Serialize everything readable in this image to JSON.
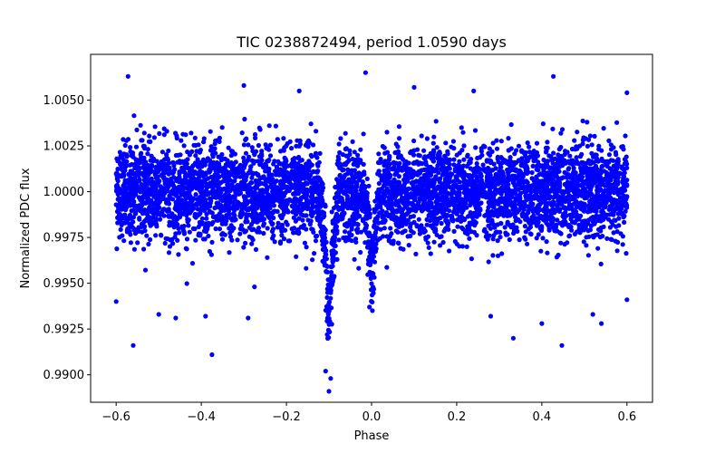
{
  "chart_data": {
    "type": "scatter",
    "title": "TIC 0238872494, period 1.0590 days",
    "xlabel": "Phase",
    "ylabel": "Normalized PDC flux",
    "xlim": [
      -0.66,
      0.66
    ],
    "ylim": [
      0.9885,
      1.0075
    ],
    "x_ticks": [
      -0.6,
      -0.4,
      -0.2,
      0.0,
      0.2,
      0.4,
      0.6
    ],
    "x_tick_labels": [
      "−0.6",
      "−0.4",
      "−0.2",
      "0.0",
      "0.2",
      "0.4",
      "0.6"
    ],
    "y_ticks": [
      0.99,
      0.9925,
      0.995,
      0.9975,
      1.0,
      1.0025,
      1.005
    ],
    "y_tick_labels": [
      "0.9900",
      "0.9925",
      "0.9950",
      "0.9975",
      "1.0000",
      "1.0025",
      "1.0050"
    ],
    "grid": false,
    "color": "#0000ff",
    "series": [
      {
        "name": "PDC flux",
        "phase_range": [
          -0.6,
          0.6
        ],
        "baseline_flux": 1.0,
        "flux_scatter_sigma": 0.0013,
        "primary_eclipse": {
          "phase_center": -0.1,
          "depth": 0.0068,
          "half_width": 0.025
        },
        "secondary_eclipse": {
          "phase_center": 0.0,
          "depth": 0.0048,
          "half_width": 0.02
        },
        "max_flux": 1.0065,
        "min_flux": 0.9891,
        "points": [
          [
            -0.572,
            1.0063
          ],
          [
            -0.014,
            1.0065
          ],
          [
            0.427,
            1.0063
          ],
          [
            0.1,
            1.0057
          ],
          [
            -0.3,
            1.0058
          ],
          [
            0.24,
            1.0055
          ],
          [
            -0.17,
            1.0055
          ],
          [
            0.6,
            1.0054
          ],
          [
            -0.56,
            0.9916
          ],
          [
            -0.375,
            0.9911
          ],
          [
            0.333,
            0.992
          ],
          [
            0.447,
            0.9916
          ],
          [
            -0.1,
            0.9891
          ],
          [
            -0.096,
            0.9898
          ],
          [
            -0.108,
            0.9902
          ],
          [
            -0.005,
            0.9937
          ],
          [
            0.002,
            0.9935
          ],
          [
            0.6,
            0.9941
          ],
          [
            -0.6,
            0.994
          ],
          [
            -0.5,
            0.9933
          ],
          [
            -0.46,
            0.9931
          ],
          [
            -0.39,
            0.9932
          ],
          [
            -0.29,
            0.9931
          ],
          [
            0.28,
            0.9932
          ],
          [
            0.4,
            0.9928
          ],
          [
            0.52,
            0.9933
          ],
          [
            0.54,
            0.9928
          ]
        ]
      }
    ]
  }
}
